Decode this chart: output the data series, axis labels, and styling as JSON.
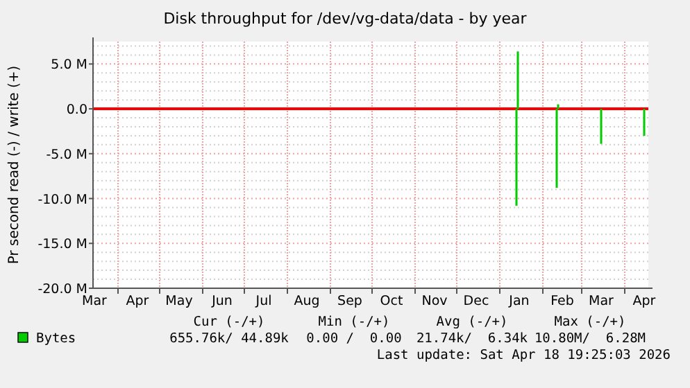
{
  "chart_data": {
    "type": "bar",
    "title": "Disk throughput for /dev/vg-data/data - by year",
    "ylabel": "Pr second read (-) / write (+)",
    "xlim": [
      "2025-03-14",
      "2026-04-18"
    ],
    "xticks": [
      {
        "value": "2025-03-15",
        "label": "Mar"
      },
      {
        "value": "2025-04-15",
        "label": "Apr"
      },
      {
        "value": "2025-05-15",
        "label": "May"
      },
      {
        "value": "2025-06-15",
        "label": "Jun"
      },
      {
        "value": "2025-07-15",
        "label": "Jul"
      },
      {
        "value": "2025-08-15",
        "label": "Aug"
      },
      {
        "value": "2025-09-15",
        "label": "Sep"
      },
      {
        "value": "2025-10-15",
        "label": "Oct"
      },
      {
        "value": "2025-11-15",
        "label": "Nov"
      },
      {
        "value": "2025-12-15",
        "label": "Dec"
      },
      {
        "value": "2026-01-15",
        "label": "Jan"
      },
      {
        "value": "2026-02-15",
        "label": "Feb"
      },
      {
        "value": "2026-03-15",
        "label": "Mar"
      },
      {
        "value": "2026-04-15",
        "label": "Apr"
      }
    ],
    "ylim": [
      -20000000,
      7500000
    ],
    "yticks": [
      {
        "value": 5000000,
        "label": "5.0 M"
      },
      {
        "value": 0,
        "label": "0.0"
      },
      {
        "value": -5000000,
        "label": "-5.0 M"
      },
      {
        "value": -10000000,
        "label": "-10.0 M"
      },
      {
        "value": -15000000,
        "label": "-15.0 M"
      },
      {
        "value": -20000000,
        "label": "-20.0 M"
      },
      {
        "value": 7000000,
        "label": null
      },
      {
        "value": 6000000,
        "label": null
      },
      {
        "value": 4000000,
        "label": null
      },
      {
        "value": 3000000,
        "label": null
      },
      {
        "value": 2000000,
        "label": null
      },
      {
        "value": 1000000,
        "label": null
      },
      {
        "value": -1000000,
        "label": null
      },
      {
        "value": -2000000,
        "label": null
      },
      {
        "value": -3000000,
        "label": null
      },
      {
        "value": -4000000,
        "label": null
      },
      {
        "value": -6000000,
        "label": null
      },
      {
        "value": -7000000,
        "label": null
      },
      {
        "value": -8000000,
        "label": null
      },
      {
        "value": -9000000,
        "label": null
      },
      {
        "value": -11000000,
        "label": null
      },
      {
        "value": -12000000,
        "label": null
      },
      {
        "value": -13000000,
        "label": null
      },
      {
        "value": -14000000,
        "label": null
      },
      {
        "value": -16000000,
        "label": null
      },
      {
        "value": -17000000,
        "label": null
      },
      {
        "value": -18000000,
        "label": null
      },
      {
        "value": -19000000,
        "label": null
      }
    ],
    "grid": true,
    "legend": "bottom left",
    "series": [
      {
        "name": "Bytes",
        "color": "#00cc00",
        "x": [
          "2026-01-13",
          "2026-02-11",
          "2026-03-15",
          "2026-04-15"
        ],
        "values": [
          -10800000,
          -8800000,
          -3900000,
          -3000000
        ]
      },
      {
        "color": "#00cc00",
        "x": [
          "2026-01-14",
          "2026-02-12"
        ],
        "values": [
          6400000,
          500000
        ]
      }
    ],
    "ref_lines": [
      {
        "axis": "y",
        "value": 0,
        "color": "#ff0000"
      }
    ],
    "annotations": [
      "Cur (-/+)",
      "Min (-/+)",
      "Avg (-/+)",
      "Max (-/+)",
      "655.76k/ 44.89k",
      "0.00 /  0.00",
      "21.74k/  6.34k",
      "10.80M/  6.28M",
      "Last update: Sat Apr 18 19:25:03 2026"
    ]
  }
}
